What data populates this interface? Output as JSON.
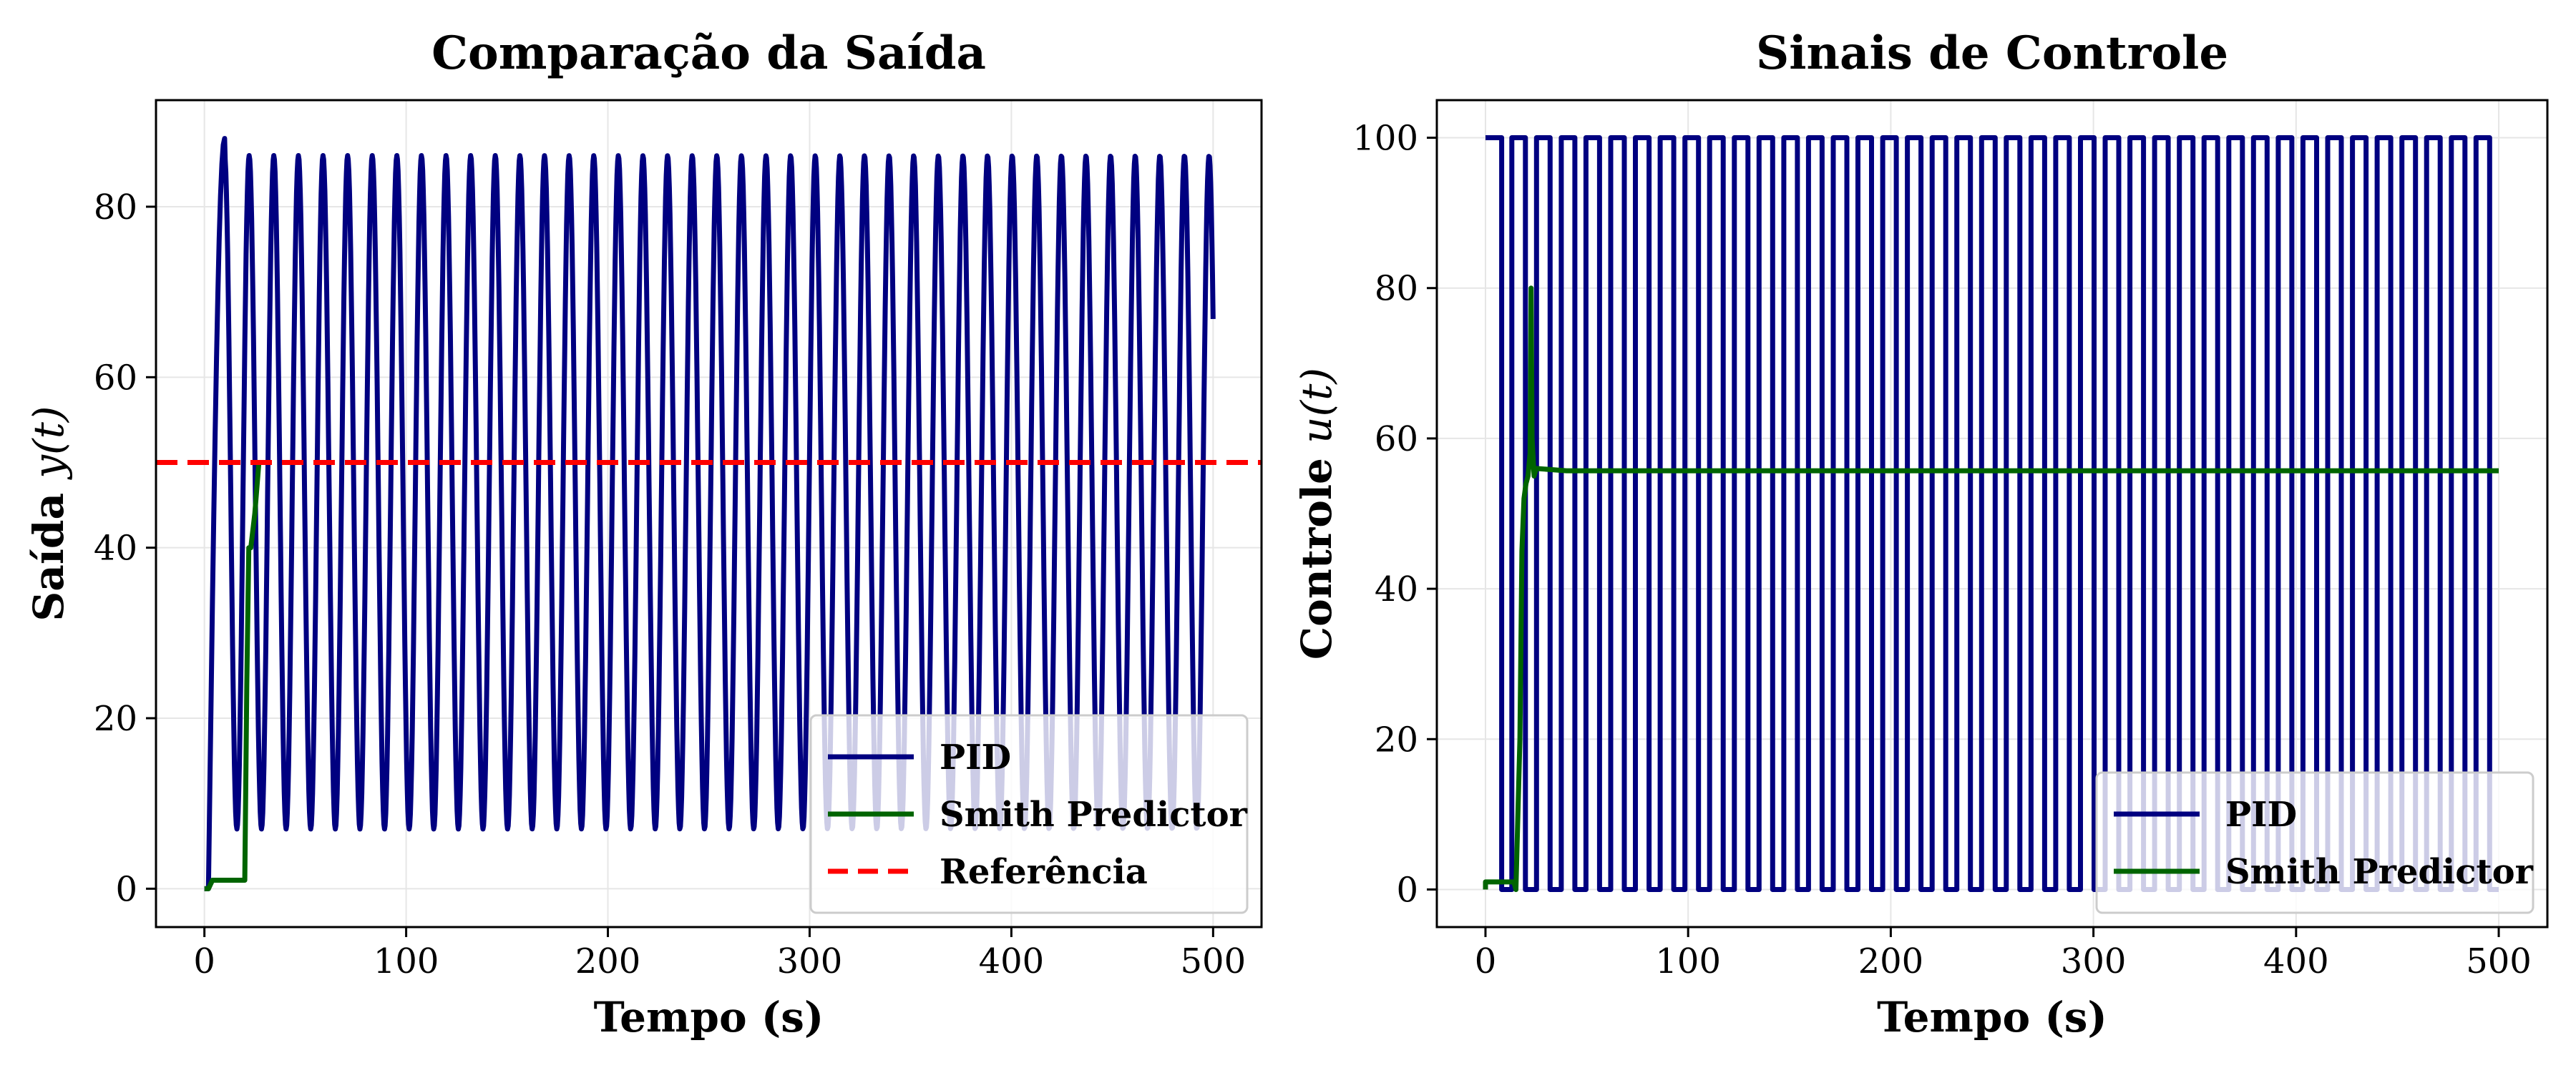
{
  "chart_data": [
    {
      "type": "line",
      "title": "Comparação da Saída",
      "xlabel": "Tempo (s)",
      "ylabel_prefix": "Saída ",
      "ylabel_var": "y(t)",
      "xlim": [
        -24,
        524
      ],
      "ylim": [
        -4.5,
        92.5
      ],
      "xticks": [
        0,
        100,
        200,
        300,
        400,
        500
      ],
      "yticks": [
        0,
        20,
        40,
        60,
        80
      ],
      "grid": true,
      "legend_position": "lower-right",
      "series": [
        {
          "name": "PID",
          "color": "#000080",
          "style": "solid",
          "kind": "oscillation",
          "dead_time": 2,
          "first_peak_t": 10,
          "first_peak_y": 88,
          "period": 12.2,
          "y_max": 86,
          "y_min": 7,
          "t_end": 500
        },
        {
          "name": "Smith Predictor",
          "color": "#006400",
          "style": "solid",
          "kind": "points",
          "points": [
            [
              0,
              0
            ],
            [
              2,
              0
            ],
            [
              4,
              1
            ],
            [
              20,
              1
            ],
            [
              21,
              24
            ],
            [
              22,
              40
            ],
            [
              23,
              40
            ],
            [
              25,
              44
            ],
            [
              27,
              50
            ],
            [
              30,
              50
            ],
            [
              30,
              50
            ]
          ]
        },
        {
          "name": "Referência",
          "color": "#ff0000",
          "style": "dashed",
          "kind": "hline",
          "y": 50
        }
      ]
    },
    {
      "type": "line",
      "title": "Sinais de Controle",
      "xlabel": "Tempo (s)",
      "ylabel_prefix": "Controle ",
      "ylabel_var": "u(t)",
      "xlim": [
        -24,
        524
      ],
      "ylim": [
        -5,
        105
      ],
      "xticks": [
        0,
        100,
        200,
        300,
        400,
        500
      ],
      "yticks": [
        0,
        20,
        40,
        60,
        80,
        100
      ],
      "grid": true,
      "legend_position": "lower-right",
      "series": [
        {
          "name": "PID",
          "color": "#000080",
          "style": "solid",
          "kind": "square",
          "first_high": [
            0,
            8
          ],
          "first_low": [
            8,
            13
          ],
          "period": 12.2,
          "high_fraction": 0.55,
          "high": 100,
          "low": 0,
          "t_end": 500
        },
        {
          "name": "Smith Predictor",
          "color": "#006400",
          "style": "solid",
          "kind": "points",
          "points": [
            [
              0,
              0
            ],
            [
              0,
              1
            ],
            [
              14,
              1
            ],
            [
              15,
              0
            ],
            [
              17,
              20
            ],
            [
              18,
              45
            ],
            [
              19,
              52
            ],
            [
              20,
              54
            ],
            [
              21,
              55
            ],
            [
              22,
              58
            ],
            [
              22.5,
              80
            ],
            [
              23,
              60
            ],
            [
              24,
              55
            ],
            [
              25,
              56
            ],
            [
              40,
              55.7
            ],
            [
              500,
              55.7
            ]
          ]
        }
      ]
    }
  ]
}
